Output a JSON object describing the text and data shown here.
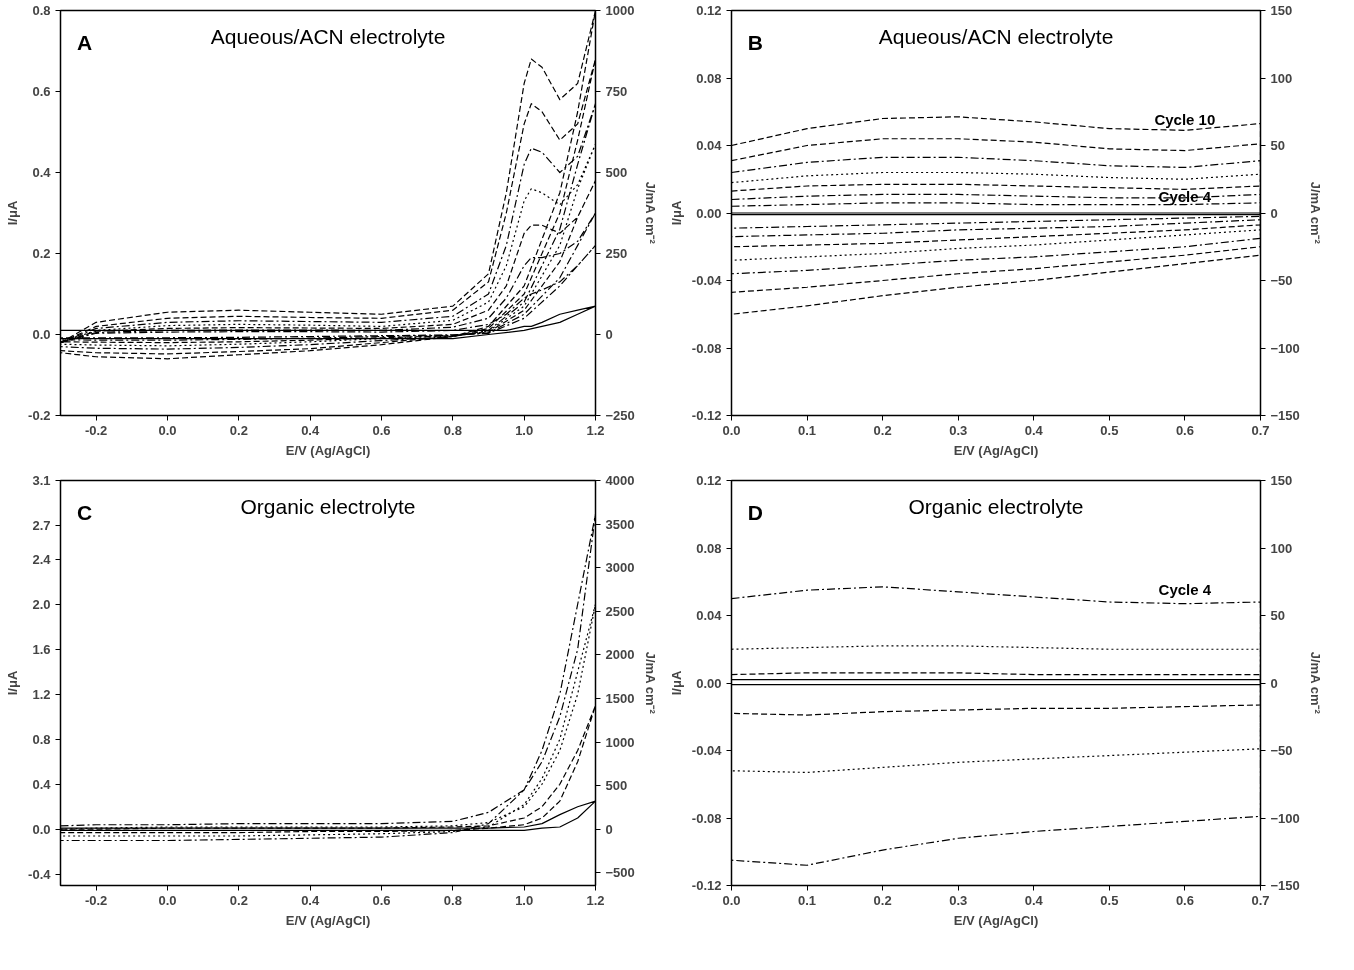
{
  "chart_data": [
    {
      "type": "line",
      "title": "Aqueous/ACN electrolyte",
      "annotations": [
        "A"
      ],
      "xlabel": "E/V (Ag/AgCl)",
      "ylabel": "I/μA",
      "y2label": "J/mA cm⁻²",
      "grid": false,
      "xlim": [
        -0.3,
        1.2
      ],
      "xticks": [
        {
          "value": -0.2,
          "label": "-0.2"
        },
        {
          "value": 0,
          "label": "0.0"
        },
        {
          "value": 0.2,
          "label": "0.2"
        },
        {
          "value": 0.4,
          "label": "0.4"
        },
        {
          "value": 0.6,
          "label": "0.6"
        },
        {
          "value": 0.8,
          "label": "0.8"
        },
        {
          "value": 1.0,
          "label": "1.0"
        },
        {
          "value": 1.2,
          "label": "1.2"
        }
      ],
      "ylim": [
        -0.2,
        0.8
      ],
      "yticks": [
        {
          "value": -0.2,
          "label": "-0.2"
        },
        {
          "value": 0,
          "label": "0.0"
        },
        {
          "value": 0.2,
          "label": "0.2"
        },
        {
          "value": 0.4,
          "label": "0.4"
        },
        {
          "value": 0.6,
          "label": "0.6"
        },
        {
          "value": 0.8,
          "label": "0.8"
        }
      ],
      "y2lim": [
        -250,
        1000
      ],
      "y2ticks": [
        -250,
        0,
        250,
        500,
        750,
        1000
      ],
      "x": [
        -0.3,
        -0.2,
        0,
        0.2,
        0.4,
        0.6,
        0.8,
        0.9,
        0.95,
        1.0,
        1.02,
        1.05,
        1.1,
        1.15,
        1.2,
        1.15,
        1.1,
        1.0,
        0.9,
        0.8,
        0.6,
        0.4,
        0.2,
        0,
        -0.2,
        -0.3
      ],
      "series": [
        {
          "color": "#000000",
          "line_style": "dashed",
          "values": [
            -0.02,
            0.03,
            0.055,
            0.06,
            0.055,
            0.05,
            0.07,
            0.15,
            0.35,
            0.62,
            0.68,
            0.66,
            0.58,
            0.62,
            0.8,
            0.55,
            0.35,
            0.12,
            0.02,
            -0.005,
            -0.025,
            -0.04,
            -0.05,
            -0.06,
            -0.055,
            -0.045
          ]
        },
        {
          "color": "#000000",
          "line_style": "dashed",
          "values": [
            -0.02,
            0.02,
            0.04,
            0.045,
            0.042,
            0.04,
            0.06,
            0.13,
            0.3,
            0.52,
            0.57,
            0.55,
            0.48,
            0.52,
            0.68,
            0.48,
            0.3,
            0.1,
            0.015,
            -0.005,
            -0.02,
            -0.035,
            -0.042,
            -0.048,
            -0.045,
            -0.04
          ]
        },
        {
          "color": "#000000",
          "line_style": "dashdot",
          "values": [
            -0.02,
            0.015,
            0.03,
            0.034,
            0.032,
            0.03,
            0.045,
            0.1,
            0.22,
            0.42,
            0.46,
            0.45,
            0.4,
            0.44,
            0.57,
            0.42,
            0.26,
            0.08,
            0.01,
            -0.005,
            -0.015,
            -0.025,
            -0.032,
            -0.036,
            -0.034,
            -0.03
          ]
        },
        {
          "color": "#000000",
          "line_style": "dotted",
          "values": [
            -0.02,
            0.01,
            0.022,
            0.025,
            0.023,
            0.02,
            0.035,
            0.08,
            0.17,
            0.33,
            0.36,
            0.35,
            0.32,
            0.37,
            0.47,
            0.36,
            0.22,
            0.07,
            0.008,
            -0.004,
            -0.01,
            -0.018,
            -0.024,
            -0.028,
            -0.026,
            -0.024
          ]
        },
        {
          "color": "#000000",
          "line_style": "dashed",
          "values": [
            -0.02,
            0.008,
            0.015,
            0.017,
            0.016,
            0.015,
            0.025,
            0.06,
            0.12,
            0.25,
            0.27,
            0.27,
            0.25,
            0.29,
            0.38,
            0.29,
            0.18,
            0.06,
            0.006,
            -0.003,
            -0.008,
            -0.014,
            -0.018,
            -0.02,
            -0.019,
            -0.018
          ]
        },
        {
          "color": "#000000",
          "line_style": "dashdot",
          "values": [
            -0.02,
            0.005,
            0.01,
            0.011,
            0.011,
            0.01,
            0.018,
            0.04,
            0.09,
            0.17,
            0.19,
            0.19,
            0.2,
            0.23,
            0.3,
            0.22,
            0.14,
            0.05,
            0.004,
            -0.002,
            -0.005,
            -0.009,
            -0.012,
            -0.014,
            -0.014,
            -0.013
          ]
        },
        {
          "color": "#000000",
          "line_style": "dashdot",
          "values": [
            -0.02,
            0.003,
            0.006,
            0.007,
            0.007,
            0.006,
            0.01,
            0.025,
            0.05,
            0.09,
            0.1,
            0.11,
            0.13,
            0.17,
            0.22,
            0.17,
            0.12,
            0.04,
            0.003,
            -0.001,
            -0.003,
            -0.005,
            -0.007,
            -0.008,
            -0.008,
            -0.008
          ]
        },
        {
          "color": "#000000",
          "line_style": "solid",
          "values": [
            0.01,
            0.01,
            0.01,
            0.01,
            0.01,
            0.01,
            0.01,
            0.01,
            0.01,
            0.02,
            0.02,
            0.03,
            0.05,
            0.06,
            0.07,
            0.05,
            0.03,
            0.01,
            0.0,
            -0.01,
            -0.01,
            -0.01,
            -0.01,
            -0.01,
            -0.01,
            -0.01
          ]
        }
      ]
    },
    {
      "type": "line",
      "title": "Aqueous/ACN electrolyte",
      "annotations": [
        "B",
        "Cycle 10",
        "Cycle 4"
      ],
      "xlabel": "E/V (Ag/AgCl)",
      "ylabel": "I/μA",
      "y2label": "J/mA cm⁻²",
      "grid": false,
      "xlim": [
        0,
        0.7
      ],
      "xticks": [
        {
          "value": 0,
          "label": "0.0"
        },
        {
          "value": 0.1,
          "label": "0.1"
        },
        {
          "value": 0.2,
          "label": "0.2"
        },
        {
          "value": 0.3,
          "label": "0.3"
        },
        {
          "value": 0.4,
          "label": "0.4"
        },
        {
          "value": 0.5,
          "label": "0.5"
        },
        {
          "value": 0.6,
          "label": "0.6"
        },
        {
          "value": 0.7,
          "label": "0.7"
        }
      ],
      "ylim": [
        -0.12,
        0.12
      ],
      "yticks": [
        {
          "value": -0.12,
          "label": "-0.12"
        },
        {
          "value": -0.08,
          "label": "-0.08"
        },
        {
          "value": -0.04,
          "label": "-0.04"
        },
        {
          "value": 0,
          "label": "0.00"
        },
        {
          "value": 0.04,
          "label": "0.04"
        },
        {
          "value": 0.08,
          "label": "0.08"
        },
        {
          "value": 0.12,
          "label": "0.12"
        }
      ],
      "y2lim": [
        -150,
        150
      ],
      "y2ticks": [
        -150,
        -100,
        -50,
        0,
        50,
        100,
        150
      ],
      "x": [
        0,
        0.1,
        0.2,
        0.3,
        0.4,
        0.5,
        0.6,
        0.7,
        0.7,
        0.6,
        0.5,
        0.4,
        0.3,
        0.2,
        0.1,
        0
      ],
      "series": [
        {
          "color": "#000000",
          "line_style": "dashed",
          "values": [
            0.04,
            0.05,
            0.056,
            0.057,
            0.054,
            0.05,
            0.049,
            0.053,
            -0.025,
            -0.03,
            -0.035,
            -0.04,
            -0.044,
            -0.049,
            -0.055,
            -0.06
          ]
        },
        {
          "color": "#000000",
          "line_style": "dashed",
          "values": [
            0.031,
            0.04,
            0.044,
            0.044,
            0.042,
            0.038,
            0.037,
            0.041,
            -0.02,
            -0.025,
            -0.029,
            -0.033,
            -0.036,
            -0.04,
            -0.044,
            -0.047
          ]
        },
        {
          "color": "#000000",
          "line_style": "dashdot",
          "values": [
            0.024,
            0.03,
            0.033,
            0.033,
            0.031,
            0.028,
            0.027,
            0.031,
            -0.015,
            -0.02,
            -0.023,
            -0.026,
            -0.028,
            -0.031,
            -0.034,
            -0.036
          ]
        },
        {
          "color": "#000000",
          "line_style": "dotted",
          "values": [
            0.018,
            0.022,
            0.024,
            0.024,
            0.023,
            0.021,
            0.02,
            0.023,
            -0.01,
            -0.013,
            -0.016,
            -0.019,
            -0.021,
            -0.024,
            -0.026,
            -0.028
          ]
        },
        {
          "color": "#000000",
          "line_style": "dashed",
          "values": [
            0.013,
            0.016,
            0.017,
            0.017,
            0.016,
            0.015,
            0.014,
            0.016,
            -0.007,
            -0.01,
            -0.012,
            -0.014,
            -0.016,
            -0.018,
            -0.019,
            -0.02
          ]
        },
        {
          "color": "#000000",
          "line_style": "dashdot",
          "values": [
            0.008,
            0.01,
            0.011,
            0.011,
            0.01,
            0.009,
            0.009,
            0.011,
            -0.004,
            -0.006,
            -0.008,
            -0.009,
            -0.01,
            -0.012,
            -0.013,
            -0.014
          ]
        },
        {
          "color": "#000000",
          "line_style": "dashdot",
          "values": [
            0.004,
            0.005,
            0.006,
            0.006,
            0.005,
            0.005,
            0.005,
            0.006,
            -0.002,
            -0.003,
            -0.004,
            -0.005,
            -0.006,
            -0.007,
            -0.008,
            -0.009
          ]
        },
        {
          "color": "#000000",
          "line_style": "solid",
          "values": [
            0.0,
            0.0,
            0.0,
            0.0,
            0.0,
            0.0,
            0.0,
            0.0,
            -0.001,
            -0.001,
            -0.001,
            -0.001,
            -0.001,
            -0.001,
            -0.001,
            -0.001
          ]
        }
      ]
    },
    {
      "type": "line",
      "title": "Organic electrolyte",
      "annotations": [
        "C"
      ],
      "xlabel": "E/V (Ag/AgCl)",
      "ylabel": "I/μA",
      "y2label": "J/mA cm⁻²",
      "grid": false,
      "xlim": [
        -0.3,
        1.2
      ],
      "xticks": [
        {
          "value": -0.2,
          "label": "-0.2"
        },
        {
          "value": 0,
          "label": "0.0"
        },
        {
          "value": 0.2,
          "label": "0.2"
        },
        {
          "value": 0.4,
          "label": "0.4"
        },
        {
          "value": 0.6,
          "label": "0.6"
        },
        {
          "value": 0.8,
          "label": "0.8"
        },
        {
          "value": 1.0,
          "label": "1.0"
        },
        {
          "value": 1.2,
          "label": "1.2"
        }
      ],
      "ylim": [
        -0.5,
        3.1
      ],
      "yticks": [
        {
          "value": -0.4,
          "label": "-0.4"
        },
        {
          "value": 0,
          "label": "0.0"
        },
        {
          "value": 0.4,
          "label": "0.4"
        },
        {
          "value": 0.8,
          "label": "0.8"
        },
        {
          "value": 1.2,
          "label": "1.2"
        },
        {
          "value": 1.6,
          "label": "1.6"
        },
        {
          "value": 2.0,
          "label": "2.0"
        },
        {
          "value": 2.4,
          "label": "2.4"
        },
        {
          "value": 2.7,
          "label": "2.7"
        },
        {
          "value": 3.1,
          "label": "3.1"
        }
      ],
      "y2lim": [
        -645,
        4000
      ],
      "y2ticks": [
        -500,
        0,
        500,
        1000,
        1500,
        2000,
        2500,
        3000,
        3500,
        4000
      ],
      "x": [
        -0.3,
        -0.2,
        0,
        0.2,
        0.4,
        0.6,
        0.8,
        0.9,
        1.0,
        1.05,
        1.1,
        1.15,
        1.2,
        1.15,
        1.1,
        1.05,
        1.0,
        0.9,
        0.8,
        0.6,
        0.4,
        0.2,
        0,
        -0.2,
        -0.3
      ],
      "series": [
        {
          "color": "#000000",
          "line_style": "dashdot",
          "values": [
            0.03,
            0.04,
            0.04,
            0.05,
            0.05,
            0.05,
            0.07,
            0.15,
            0.35,
            0.6,
            1.0,
            1.6,
            2.8,
            2.0,
            1.2,
            0.7,
            0.35,
            0.05,
            -0.03,
            -0.07,
            -0.08,
            -0.09,
            -0.1,
            -0.1,
            -0.1
          ]
        },
        {
          "color": "#000000",
          "line_style": "dotted",
          "values": [
            0.0,
            0.01,
            0.02,
            0.02,
            0.02,
            0.02,
            0.03,
            0.06,
            0.2,
            0.4,
            0.7,
            1.2,
            2.0,
            1.4,
            0.8,
            0.45,
            0.22,
            0.02,
            -0.02,
            -0.04,
            -0.05,
            -0.06,
            -0.06,
            -0.06,
            -0.06
          ]
        },
        {
          "color": "#000000",
          "line_style": "dashed",
          "values": [
            0.0,
            0.0,
            0.01,
            0.01,
            0.01,
            0.01,
            0.02,
            0.03,
            0.1,
            0.2,
            0.4,
            0.7,
            1.1,
            0.6,
            0.25,
            0.1,
            0.04,
            0.01,
            -0.01,
            -0.02,
            -0.02,
            -0.03,
            -0.03,
            -0.03,
            -0.03
          ]
        },
        {
          "color": "#000000",
          "line_style": "solid",
          "values": [
            0.01,
            0.01,
            0.01,
            0.01,
            0.01,
            0.01,
            0.01,
            0.01,
            0.02,
            0.05,
            0.13,
            0.2,
            0.25,
            0.1,
            0.02,
            0.01,
            -0.01,
            -0.01,
            -0.01,
            -0.01,
            -0.01,
            -0.01,
            -0.01,
            -0.01,
            -0.01
          ]
        }
      ]
    },
    {
      "type": "line",
      "title": "Organic electrolyte",
      "annotations": [
        "D",
        "Cycle 4"
      ],
      "xlabel": "E/V (Ag/AgCl)",
      "ylabel": "I/μA",
      "y2label": "J/mA cm⁻²",
      "grid": false,
      "xlim": [
        0,
        0.7
      ],
      "xticks": [
        {
          "value": 0,
          "label": "0.0"
        },
        {
          "value": 0.1,
          "label": "0.1"
        },
        {
          "value": 0.2,
          "label": "0.2"
        },
        {
          "value": 0.3,
          "label": "0.3"
        },
        {
          "value": 0.4,
          "label": "0.4"
        },
        {
          "value": 0.5,
          "label": "0.5"
        },
        {
          "value": 0.6,
          "label": "0.6"
        },
        {
          "value": 0.7,
          "label": "0.7"
        }
      ],
      "ylim": [
        -0.12,
        0.12
      ],
      "yticks": [
        {
          "value": -0.12,
          "label": "-0.12"
        },
        {
          "value": -0.08,
          "label": "-0.08"
        },
        {
          "value": -0.04,
          "label": "-0.04"
        },
        {
          "value": 0,
          "label": "0.00"
        },
        {
          "value": 0.04,
          "label": "0.04"
        },
        {
          "value": 0.08,
          "label": "0.08"
        },
        {
          "value": 0.12,
          "label": "0.12"
        }
      ],
      "y2lim": [
        -150,
        150
      ],
      "y2ticks": [
        -150,
        -100,
        -50,
        0,
        50,
        100,
        150
      ],
      "x": [
        0,
        0.1,
        0.2,
        0.3,
        0.4,
        0.5,
        0.6,
        0.7,
        0.7,
        0.6,
        0.5,
        0.4,
        0.3,
        0.2,
        0.1,
        0
      ],
      "series": [
        {
          "color": "#000000",
          "line_style": "dashdot",
          "values": [
            0.05,
            0.055,
            0.057,
            0.054,
            0.051,
            0.048,
            0.047,
            0.048,
            -0.079,
            -0.082,
            -0.085,
            -0.088,
            -0.092,
            -0.099,
            -0.108,
            -0.105
          ]
        },
        {
          "color": "#000000",
          "line_style": "dotted",
          "values": [
            0.02,
            0.021,
            0.022,
            0.022,
            0.021,
            0.02,
            0.02,
            0.02,
            -0.039,
            -0.041,
            -0.043,
            -0.045,
            -0.047,
            -0.05,
            -0.053,
            -0.052
          ]
        },
        {
          "color": "#000000",
          "line_style": "dashed",
          "values": [
            0.005,
            0.006,
            0.006,
            0.006,
            0.005,
            0.005,
            0.005,
            0.005,
            -0.013,
            -0.014,
            -0.015,
            -0.015,
            -0.016,
            -0.017,
            -0.019,
            -0.018
          ]
        },
        {
          "color": "#000000",
          "line_style": "solid",
          "values": [
            0.002,
            0.002,
            0.002,
            0.002,
            0.002,
            0.002,
            0.002,
            0.002,
            -0.001,
            -0.001,
            -0.001,
            -0.001,
            -0.001,
            -0.001,
            -0.001,
            -0.001
          ]
        }
      ]
    }
  ]
}
